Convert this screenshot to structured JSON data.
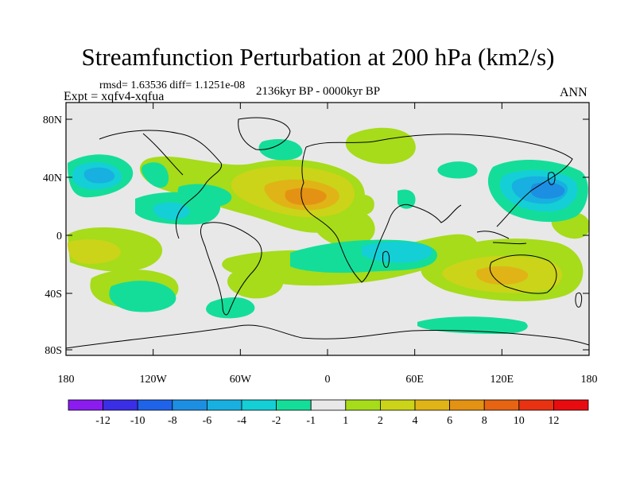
{
  "title": "Streamfunction Perturbation at 200 hPa (km2/s)",
  "stats": "rmsd= 1.63536 diff= 1.1251e-08",
  "experiment": "Expt = xqfv4-xqfua",
  "period": "2136kyr BP - 0000kyr BP",
  "season": "ANN",
  "axes": {
    "y_ticks": [
      "80N",
      "40N",
      "0",
      "40S",
      "80S"
    ],
    "x_ticks": [
      "180",
      "120W",
      "60W",
      "0",
      "60E",
      "120E",
      "180"
    ]
  },
  "colorbar": {
    "labels": [
      "-12",
      "-10",
      "-8",
      "-6",
      "-4",
      "-2",
      "-1",
      "1",
      "2",
      "4",
      "6",
      "8",
      "10",
      "12"
    ],
    "colors": [
      "#8a1cf0",
      "#3a2ee6",
      "#1e63e8",
      "#1c8fe3",
      "#18b0e0",
      "#14cfd6",
      "#14dd9a",
      "#e8e8e8",
      "#a6dc1a",
      "#cbd418",
      "#e0b416",
      "#e49214",
      "#e66412",
      "#e83212",
      "#e80c10"
    ]
  },
  "colors": {
    "background": "#e8e8e8",
    "coast": "#000000"
  }
}
